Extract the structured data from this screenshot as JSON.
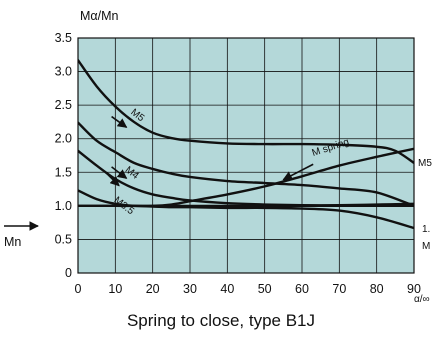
{
  "chart_data": {
    "type": "line",
    "title": "Spring to close, type B1J",
    "ylabel": "Mα/Mn",
    "xlabel": "α/∞",
    "xlim": [
      0,
      90
    ],
    "ylim": [
      0,
      3.5
    ],
    "x_ticks": [
      "0",
      "10",
      "20",
      "30",
      "40",
      "50",
      "60",
      "70",
      "80",
      "90"
    ],
    "y_ticks": [
      "0",
      "0.5",
      "1.0",
      "1.5",
      "2.0",
      "2.5",
      "3.0",
      "3.5"
    ],
    "grid": true,
    "background_color": "#b4d8d9",
    "line_color": "#111111",
    "series": [
      {
        "name": "M5",
        "x": [
          0,
          5,
          10,
          15,
          20,
          25,
          30,
          40,
          50,
          60,
          70,
          80,
          85,
          90
        ],
        "y": [
          3.17,
          2.78,
          2.48,
          2.25,
          2.09,
          2.01,
          1.97,
          1.93,
          1.92,
          1.92,
          1.91,
          1.88,
          1.82,
          1.64
        ]
      },
      {
        "name": "M4",
        "x": [
          0,
          5,
          10,
          15,
          20,
          25,
          30,
          40,
          50,
          60,
          70,
          80,
          90
        ],
        "y": [
          2.24,
          1.97,
          1.8,
          1.64,
          1.55,
          1.48,
          1.43,
          1.37,
          1.34,
          1.31,
          1.26,
          1.2,
          1.0
        ]
      },
      {
        "name": "M3.5",
        "x": [
          0,
          5,
          10,
          15,
          20,
          25,
          30,
          40,
          50,
          60,
          70,
          80,
          90
        ],
        "y": [
          1.82,
          1.6,
          1.4,
          1.26,
          1.17,
          1.12,
          1.08,
          1.04,
          1.02,
          1.01,
          1.01,
          1.02,
          1.03
        ]
      },
      {
        "name": "",
        "x": [
          0,
          5,
          10,
          15,
          20,
          25,
          30,
          40,
          50,
          60,
          70,
          80,
          90
        ],
        "y": [
          1.23,
          1.1,
          1.03,
          1.0,
          0.99,
          0.98,
          0.98,
          0.97,
          0.97,
          0.96,
          0.93,
          0.83,
          0.67
        ]
      },
      {
        "name": "M spring",
        "x": [
          0,
          10,
          20,
          25,
          30,
          40,
          50,
          60,
          70,
          80,
          90
        ],
        "y": [
          1.0,
          1.0,
          1.0,
          1.02,
          1.07,
          1.17,
          1.29,
          1.44,
          1.6,
          1.73,
          1.85
        ]
      },
      {
        "name": "",
        "x": [
          0,
          90
        ],
        "y": [
          1.0,
          1.0
        ]
      }
    ],
    "annotations": [
      {
        "text": "M5",
        "x": 14,
        "y": 2.38,
        "rotate": 38
      },
      {
        "text": "M4",
        "x": 12.5,
        "y": 1.52,
        "rotate": 38
      },
      {
        "text": "M3.5",
        "x": 9.5,
        "y": 1.07,
        "rotate": 38
      },
      {
        "text": "M spring",
        "x": 63,
        "y": 1.74,
        "rotate": -18
      }
    ],
    "arrows": [
      {
        "from": [
          9,
          2.33
        ],
        "to": [
          13,
          2.17
        ]
      },
      {
        "from": [
          9,
          1.58
        ],
        "to": [
          13,
          1.41
        ]
      },
      {
        "from": [
          7,
          1.52
        ],
        "to": [
          11,
          1.3
        ]
      },
      {
        "from": [
          63,
          1.62
        ],
        "to": [
          55,
          1.39
        ]
      }
    ],
    "side_labels": {
      "left": "Mn",
      "right_top": "M5",
      "right_mid": "1.",
      "right_low": "M"
    }
  }
}
